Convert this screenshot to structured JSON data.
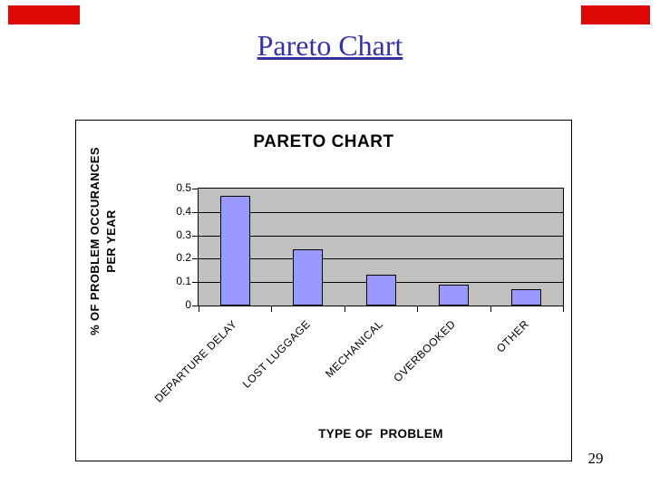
{
  "slide": {
    "title": "Pareto Chart",
    "title_color": "#3333a6",
    "accent_color": "#dd0806",
    "page_number": "29"
  },
  "chart_data": {
    "type": "bar",
    "title": "PARETO CHART",
    "categories": [
      "DEPARTURE DELAY",
      "LOST LUGGAGE",
      "MECHANICAL",
      "OVERBOOKED",
      "OTHER"
    ],
    "values": [
      0.47,
      0.24,
      0.13,
      0.09,
      0.07
    ],
    "xlabel": "TYPE OF  PROBLEM",
    "ylabel": "% OF PROBLEM OCCURANCES PER YEAR",
    "ylabel_lines": [
      "% OF PROBLEM OCCURANCES",
      "PER YEAR"
    ],
    "ylim": [
      0,
      0.5
    ],
    "yticks": [
      0,
      0.1,
      0.2,
      0.3,
      0.4,
      0.5
    ],
    "ytick_labels": [
      "0",
      "0.1",
      "0.2",
      "0.3",
      "0.4",
      "0.5"
    ],
    "grid": true,
    "legend": false,
    "plot_bg": "#c0c0c0",
    "bar_fill": "#9999ff",
    "bar_border": "#000000",
    "gridline_color": "#000000"
  }
}
